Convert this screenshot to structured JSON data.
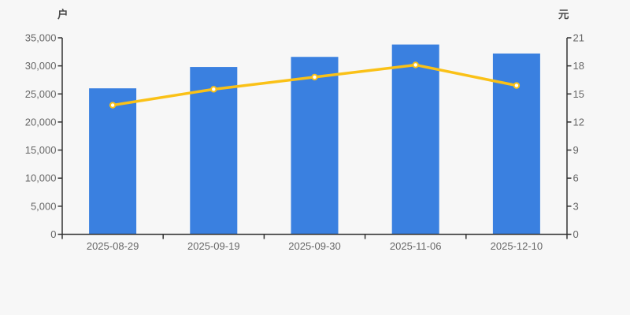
{
  "chart_data": {
    "type": "combo",
    "subtypes": [
      "bar",
      "line"
    ],
    "title": "",
    "legend_position": "none",
    "grid": "off",
    "categories": [
      "2025-08-29",
      "2025-09-19",
      "2025-09-30",
      "2025-11-06",
      "2025-12-10"
    ],
    "series": [
      {
        "id": "bar-series",
        "type": "bar",
        "y_axis": "left",
        "values": [
          26000,
          29800,
          31600,
          33800,
          32200
        ]
      },
      {
        "id": "line-series",
        "type": "line",
        "y_axis": "right",
        "values": [
          13.8,
          15.5,
          16.8,
          18.1,
          15.9
        ]
      }
    ],
    "left_axis": {
      "unit": "户",
      "min": 0,
      "max": 35000,
      "tick_step": 5000,
      "tick_labels": [
        "0",
        "5,000",
        "10,000",
        "15,000",
        "20,000",
        "25,000",
        "30,000",
        "35,000"
      ]
    },
    "right_axis": {
      "unit": "元",
      "min": 0,
      "max": 21,
      "tick_step": 3,
      "tick_labels": [
        "0",
        "3",
        "6",
        "9",
        "12",
        "15",
        "18",
        "21"
      ]
    }
  },
  "colors": {
    "bar": "#3a80e0",
    "line": "#fac117",
    "marker_fill": "#ffffff",
    "axis": "#333333",
    "tick_text": "#666666",
    "unit_text": "#4a4a4a",
    "background": "#f7f7f7"
  }
}
